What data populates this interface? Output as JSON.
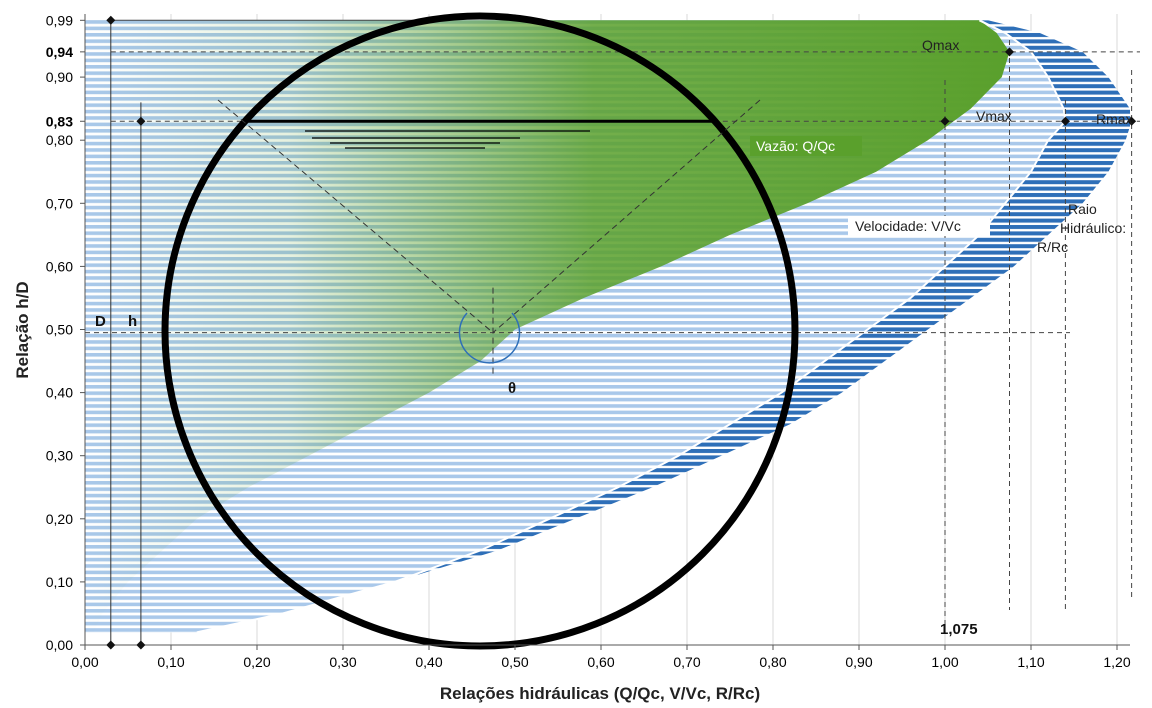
{
  "chart_data": {
    "type": "line",
    "title": "",
    "xlabel": "Relações hidráulicas (Q/Qc, V/Vc, R/Rc)",
    "ylabel": "Relação h/D",
    "xlim": [
      0,
      1.25
    ],
    "ylim": [
      0,
      1.0
    ],
    "x_ticks": [
      "0,00",
      "0,10",
      "0,20",
      "0,30",
      "0,40",
      "0,50",
      "0,60",
      "0,70",
      "0,80",
      "0,90",
      "1,00",
      "1,10",
      "1,20"
    ],
    "y_ticks": [
      {
        "v": 0.0,
        "t": "0,00",
        "bold": false
      },
      {
        "v": 0.1,
        "t": "0,10",
        "bold": false
      },
      {
        "v": 0.2,
        "t": "0,20",
        "bold": false
      },
      {
        "v": 0.3,
        "t": "0,30",
        "bold": false
      },
      {
        "v": 0.4,
        "t": "0,40",
        "bold": false
      },
      {
        "v": 0.5,
        "t": "0,50",
        "bold": false
      },
      {
        "v": 0.6,
        "t": "0,60",
        "bold": false
      },
      {
        "v": 0.7,
        "t": "0,70",
        "bold": false
      },
      {
        "v": 0.8,
        "t": "0,80",
        "bold": false
      },
      {
        "v": 0.83,
        "t": "0,83",
        "bold": true
      },
      {
        "v": 0.9,
        "t": "0,90",
        "bold": false
      },
      {
        "v": 0.94,
        "t": "0,94",
        "bold": true
      },
      {
        "v": 0.99,
        "t": "0,99",
        "bold": false
      }
    ],
    "series": [
      {
        "name": "Vazão: Q/Qc",
        "color": "#5aa02c",
        "h": [
          0.02,
          0.05,
          0.1,
          0.15,
          0.2,
          0.25,
          0.3,
          0.35,
          0.4,
          0.45,
          0.5,
          0.55,
          0.6,
          0.65,
          0.7,
          0.75,
          0.8,
          0.85,
          0.9,
          0.94,
          0.97,
          0.99
        ],
        "x": [
          0.01,
          0.02,
          0.05,
          0.09,
          0.13,
          0.19,
          0.26,
          0.33,
          0.4,
          0.46,
          0.5,
          0.58,
          0.67,
          0.75,
          0.84,
          0.92,
          0.98,
          1.03,
          1.066,
          1.075,
          1.06,
          1.04
        ]
      },
      {
        "name": "Velocidade: V/Vc",
        "color": "#a9c8ea",
        "h": [
          0.02,
          0.05,
          0.1,
          0.15,
          0.2,
          0.25,
          0.3,
          0.35,
          0.4,
          0.45,
          0.5,
          0.55,
          0.6,
          0.65,
          0.7,
          0.75,
          0.8,
          0.83,
          0.85,
          0.9,
          0.94,
          0.97,
          0.99
        ],
        "x": [
          0.13,
          0.23,
          0.36,
          0.46,
          0.54,
          0.62,
          0.69,
          0.75,
          0.81,
          0.86,
          0.91,
          0.96,
          1.0,
          1.04,
          1.07,
          1.1,
          1.12,
          1.14,
          1.138,
          1.12,
          1.1,
          1.07,
          1.04
        ]
      },
      {
        "name": "Raio Hidráulico: R/Rc",
        "color": "#2e6fb8",
        "h": [
          0.02,
          0.05,
          0.1,
          0.15,
          0.2,
          0.25,
          0.3,
          0.35,
          0.4,
          0.45,
          0.5,
          0.55,
          0.6,
          0.65,
          0.7,
          0.75,
          0.8,
          0.83,
          0.85,
          0.9,
          0.94,
          0.97,
          0.99
        ],
        "x": [
          0.13,
          0.23,
          0.36,
          0.48,
          0.57,
          0.66,
          0.74,
          0.82,
          0.88,
          0.93,
          0.98,
          1.03,
          1.08,
          1.12,
          1.16,
          1.19,
          1.21,
          1.217,
          1.215,
          1.19,
          1.16,
          1.11,
          1.05
        ]
      }
    ],
    "labels": {
      "vazao": "Vazão: Q/Qc",
      "velocidade": "Velocidade: V/Vc",
      "raio_1": "Raio",
      "raio_2": "Hidráulico:",
      "raio_3": "R/Rc",
      "qmax": "Qmax",
      "vmax": "Vmax",
      "rmax": "Rmax",
      "d": "D",
      "h": "h",
      "theta": "θ",
      "x1075": "1,075"
    },
    "markers": [
      {
        "x": 0.03,
        "y": 0.99
      },
      {
        "x": 0.065,
        "y": 0.83
      },
      {
        "x": 0.03,
        "y": 0.0
      },
      {
        "x": 0.065,
        "y": 0.0
      },
      {
        "x": 1.0,
        "y": 0.83
      },
      {
        "x": 1.075,
        "y": 0.94
      },
      {
        "x": 1.14,
        "y": 0.83
      },
      {
        "x": 1.217,
        "y": 0.83
      }
    ],
    "grid": true
  }
}
